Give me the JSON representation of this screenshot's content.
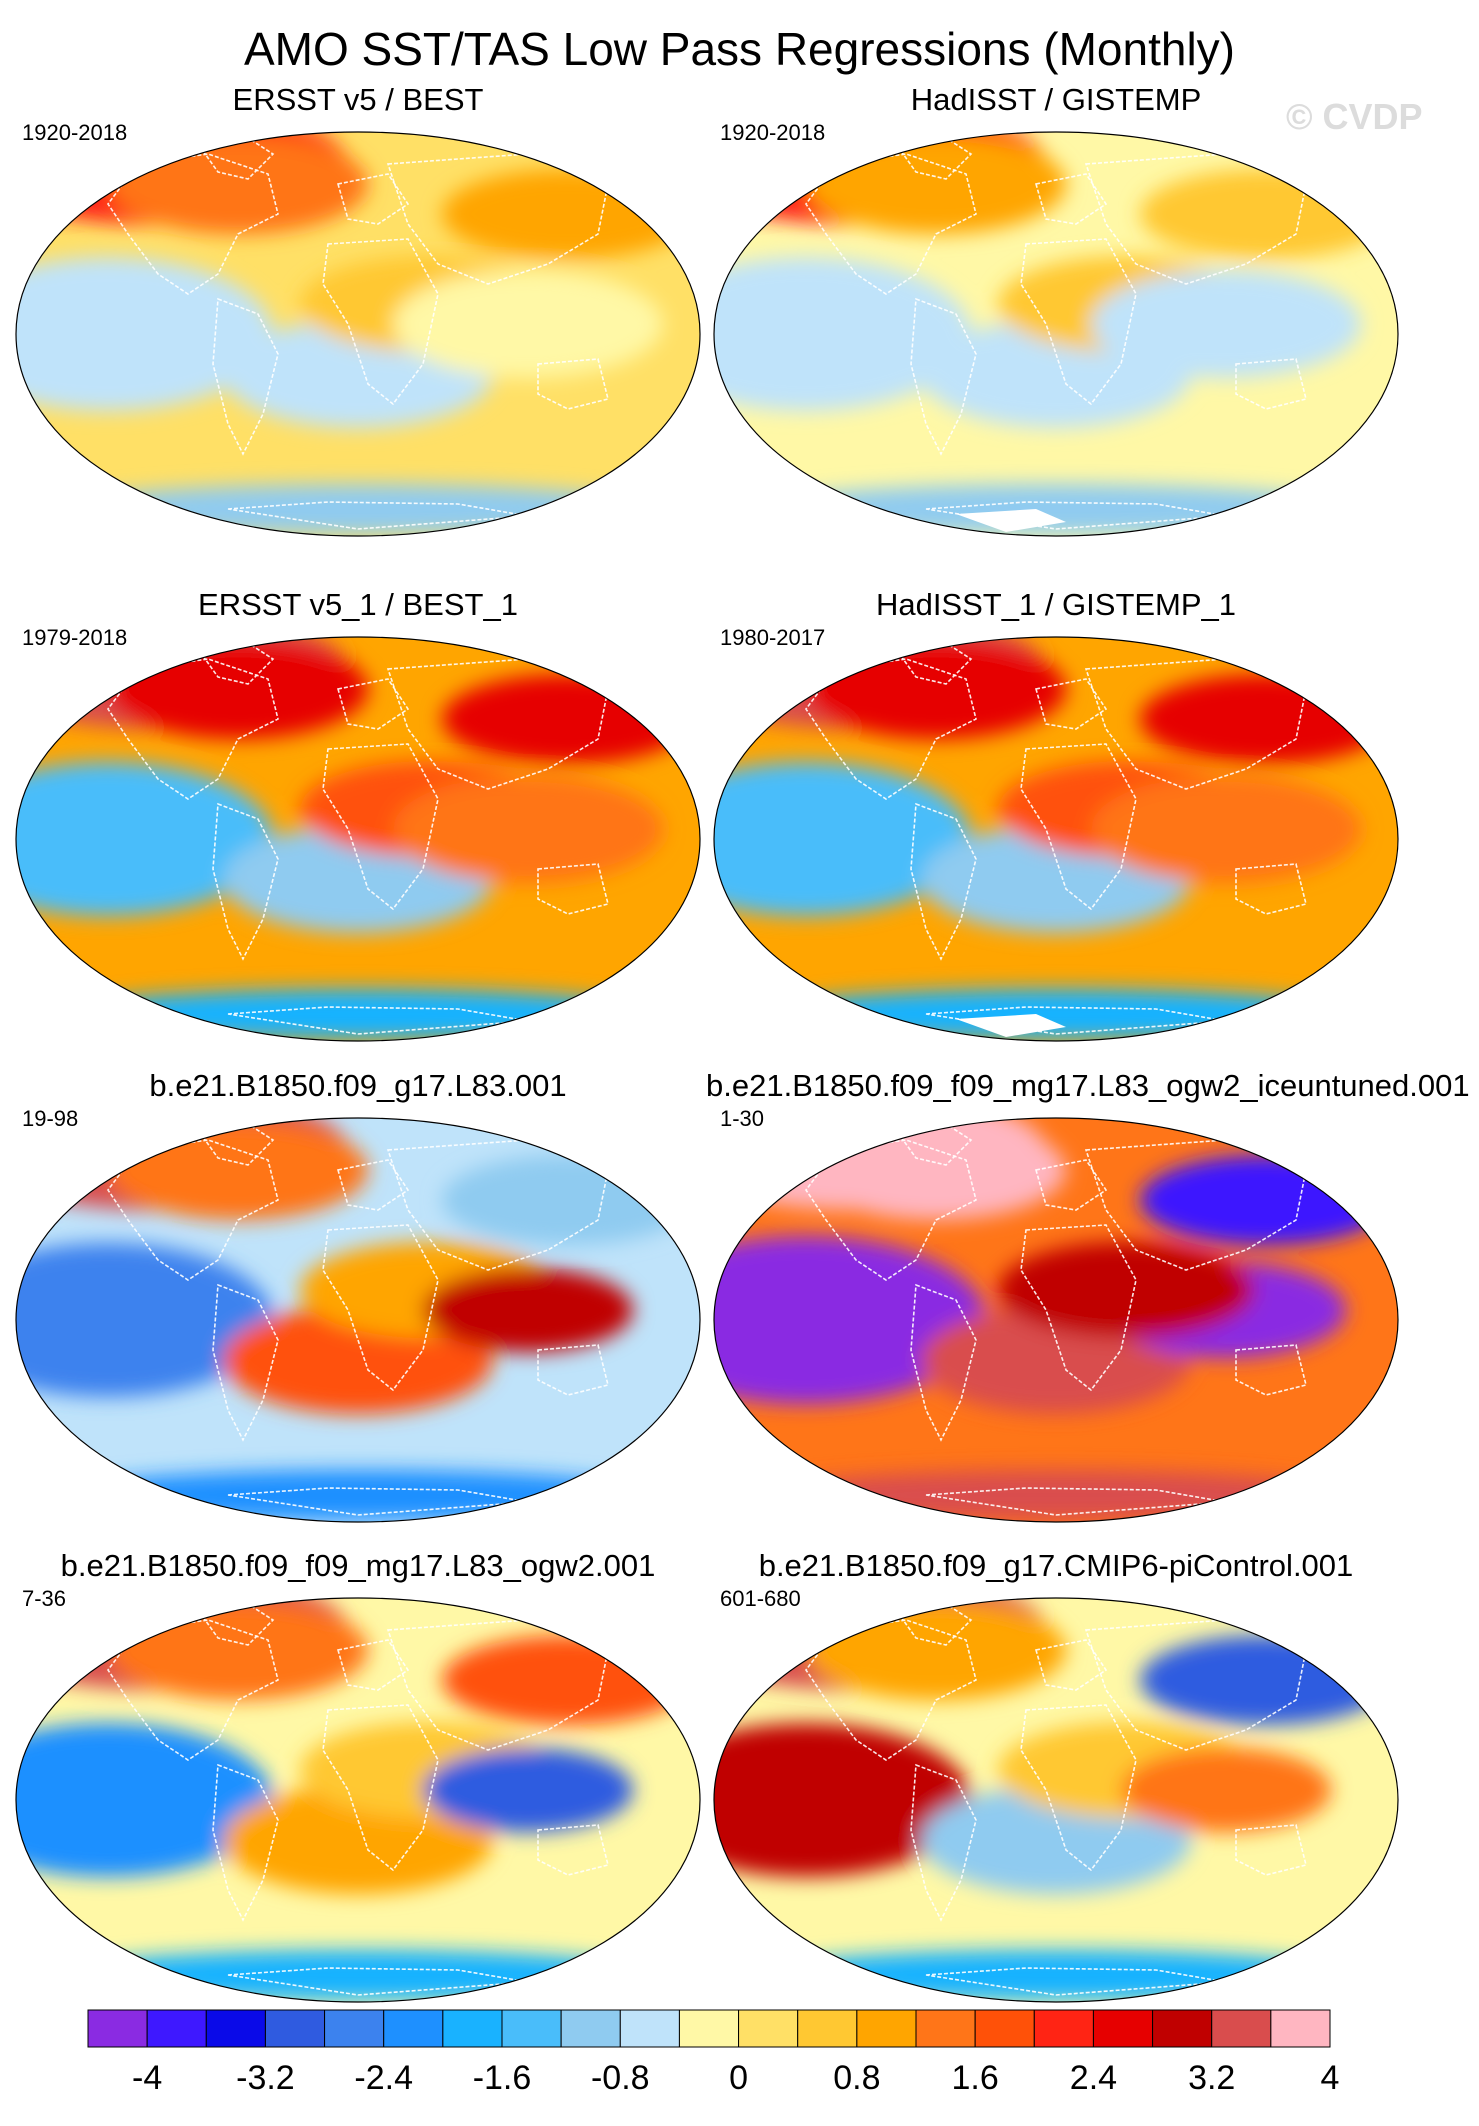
{
  "figure": {
    "title": "AMO SST/TAS Low Pass Regressions (Monthly)",
    "watermark": "© CVDP"
  },
  "panels": [
    {
      "title": "ERSST v5 / BEST",
      "years": "1920-2018",
      "pattern": "moderate",
      "ice_gaps": false
    },
    {
      "title": "HadISST / GISTEMP",
      "years": "1920-2018",
      "pattern": "hadisst",
      "ice_gaps": true
    },
    {
      "title": "ERSST v5_1 / BEST_1",
      "years": "1979-2018",
      "pattern": "strong_warm",
      "ice_gaps": false
    },
    {
      "title": "HadISST_1 / GISTEMP_1",
      "years": "1980-2017",
      "pattern": "strong_warm",
      "ice_gaps": true
    },
    {
      "title": "b.e21.B1850.f09_g17.L83.001",
      "years": "19-98",
      "pattern": "model_mixed",
      "ice_gaps": false
    },
    {
      "title": "b.e21.B1850.f09_f09_mg17.L83_ogw2_iceuntuned.001",
      "years": "1-30",
      "pattern": "extreme",
      "ice_gaps": false
    },
    {
      "title": "b.e21.B1850.f09_f09_mg17.L83_ogw2.001",
      "years": "7-36",
      "pattern": "model_mixed2",
      "ice_gaps": false
    },
    {
      "title": "b.e21.B1850.f09_g17.CMIP6-piControl.001",
      "years": "601-680",
      "pattern": "picontrol",
      "ice_gaps": false
    }
  ],
  "colorbar": {
    "colors": [
      "#8a2be2",
      "#3e18ff",
      "#0a0ae8",
      "#2f5be0",
      "#3c82ee",
      "#1e90ff",
      "#19b2ff",
      "#49bdfa",
      "#8fcbf0",
      "#bfe3fa",
      "#fff8a6",
      "#ffe066",
      "#ffc832",
      "#ffa500",
      "#ff7518",
      "#ff5108",
      "#ff2414",
      "#e60000",
      "#c00000",
      "#d94d4d",
      "#ffb6c1"
    ],
    "tick_labels": [
      "-4",
      "-3.2",
      "-2.4",
      "-1.6",
      "-0.8",
      "0",
      "0.8",
      "1.6",
      "2.4",
      "3.2",
      "4"
    ]
  }
}
